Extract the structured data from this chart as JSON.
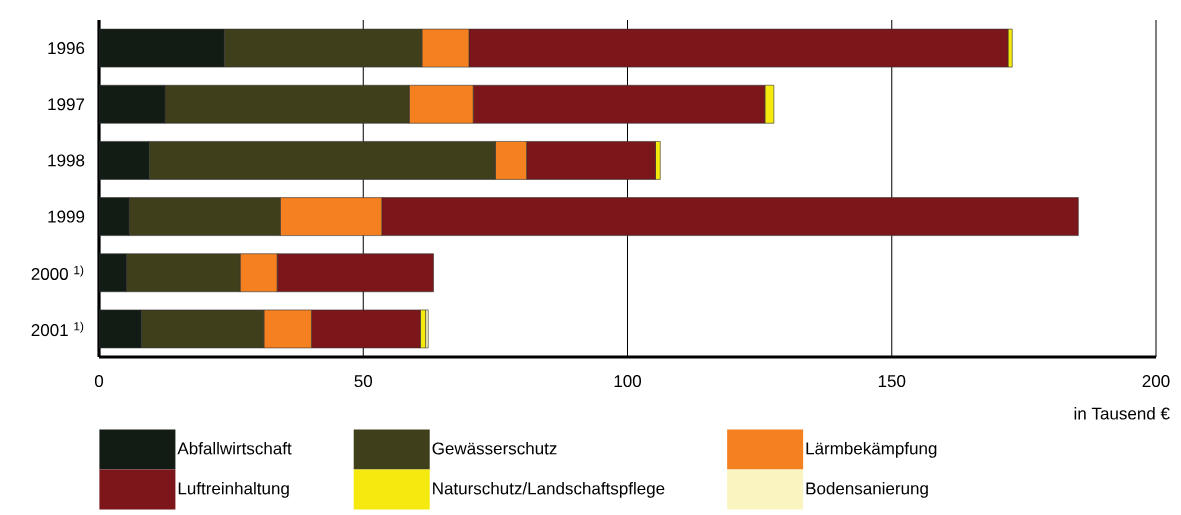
{
  "chart_data": {
    "type": "bar",
    "orientation": "horizontal",
    "stacked": true,
    "xlabel": "in Tausend €",
    "categories": [
      "1996",
      "1997",
      "1998",
      "1999",
      "2000 $^{1)}$",
      "2001 $^{1)}$"
    ],
    "series": [
      {
        "name": "Abfallwirtschaft",
        "color": "#121c14",
        "values": [
          23.7,
          12.5,
          9.5,
          5.7,
          5.2,
          8.0
        ]
      },
      {
        "name": "Gewässerschutz",
        "color": "#403f1c",
        "values": [
          37.4,
          46.2,
          65.5,
          28.6,
          21.5,
          23.2
        ]
      },
      {
        "name": "Lärmbekämpfung",
        "color": "#f48020",
        "values": [
          8.9,
          12.1,
          5.9,
          19.2,
          7.0,
          9.0
        ]
      },
      {
        "name": "Luftreinhaltung",
        "color": "#7d161a",
        "values": [
          102.0,
          55.2,
          24.4,
          131.8,
          29.6,
          20.6
        ]
      },
      {
        "name": "Naturschutz/Landschaftspflege",
        "color": "#f5e90f",
        "values": [
          0.8,
          1.7,
          0.9,
          0,
          0,
          1.0
        ]
      },
      {
        "name": "Bodensanierung",
        "color": "#faf5c0",
        "values": [
          0,
          0,
          0,
          0,
          0,
          0.5
        ]
      }
    ],
    "xlim": [
      0,
      200
    ],
    "xticks": [
      0,
      50,
      100,
      150,
      200
    ],
    "grid": "x",
    "legend": "bottom"
  }
}
